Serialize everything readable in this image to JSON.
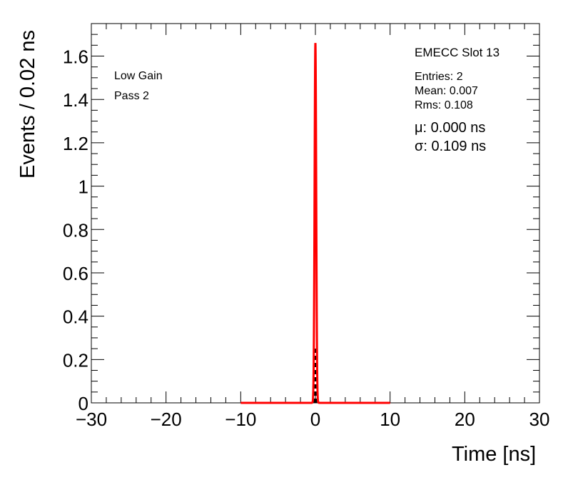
{
  "chart_data": {
    "type": "histogram",
    "title": "",
    "xlabel": "Time [ns]",
    "ylabel": "Events / 0.02 ns",
    "xlim": [
      -30,
      30
    ],
    "ylim": [
      0,
      1.75
    ],
    "xticks": [
      "−30",
      "−20",
      "−10",
      "0",
      "10",
      "20",
      "30"
    ],
    "yticks": [
      "0",
      "0.2",
      "0.4",
      "0.6",
      "0.8",
      "1",
      "1.2",
      "1.4",
      "1.6"
    ],
    "histogram": {
      "color": "#000000",
      "bins": [
        {
          "x_low": -0.06,
          "x_high": -0.04,
          "value": 0.25
        },
        {
          "x_low": -0.04,
          "x_high": -0.02,
          "value": 0.25
        },
        {
          "x_low": -0.02,
          "x_high": 0.0,
          "value": 0.25
        },
        {
          "x_low": 0.0,
          "x_high": 0.02,
          "value": 0.25
        },
        {
          "x_low": 0.02,
          "x_high": 0.04,
          "value": 0.25
        }
      ]
    },
    "fit": {
      "color": "#ff0000",
      "type": "gaussian",
      "mean": 0.0,
      "sigma": 0.109,
      "range": [
        -10,
        10
      ],
      "peak": 1.66
    },
    "annotations": {
      "left": [
        "Low Gain",
        "Pass 2"
      ],
      "slot": "EMECC Slot 13",
      "stats": [
        "Entries: 2",
        "Mean: 0.007",
        "Rms: 0.108"
      ],
      "fit_results": [
        "μ: 0.000 ns",
        "σ: 0.109 ns"
      ]
    },
    "grid": false,
    "legend": "none"
  }
}
